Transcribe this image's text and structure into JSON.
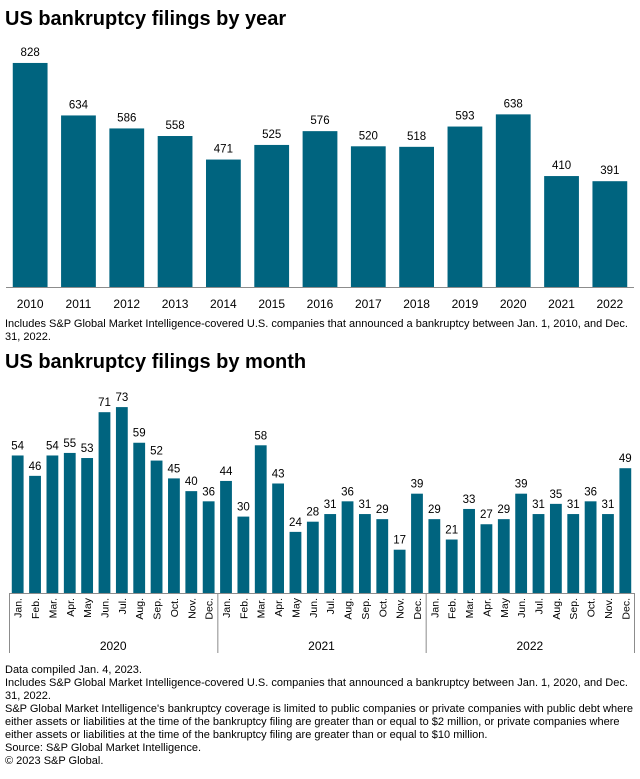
{
  "chart_data": [
    {
      "type": "bar",
      "title": "US bankruptcy filings by year",
      "categories": [
        "2010",
        "2011",
        "2012",
        "2013",
        "2014",
        "2015",
        "2016",
        "2017",
        "2018",
        "2019",
        "2020",
        "2021",
        "2022"
      ],
      "values": [
        828,
        634,
        586,
        558,
        471,
        525,
        576,
        520,
        518,
        593,
        638,
        410,
        391
      ],
      "ylim": [
        0,
        850
      ],
      "grid": false,
      "bar_color": "#00647f",
      "note": "Includes S&P Global Market Intelligence-covered U.S. companies that announced a bankruptcy between Jan. 1, 2010, and Dec. 31, 2022."
    },
    {
      "type": "bar",
      "title": "US bankruptcy filings by month",
      "groups": [
        {
          "label": "2020",
          "categories": [
            "Jan.",
            "Feb.",
            "Mar.",
            "Apr.",
            "May",
            "Jun.",
            "Jul.",
            "Aug.",
            "Sep.",
            "Oct.",
            "Nov.",
            "Dec."
          ],
          "values": [
            54,
            46,
            54,
            55,
            53,
            71,
            73,
            59,
            52,
            45,
            40,
            36
          ]
        },
        {
          "label": "2021",
          "categories": [
            "Jan.",
            "Feb.",
            "Mar.",
            "Apr.",
            "May",
            "Jun.",
            "Jul.",
            "Aug.",
            "Sep.",
            "Oct.",
            "Nov.",
            "Dec."
          ],
          "values": [
            44,
            30,
            58,
            43,
            24,
            28,
            31,
            36,
            31,
            29,
            17,
            39
          ]
        },
        {
          "label": "2022",
          "categories": [
            "Jan.",
            "Feb.",
            "Mar.",
            "Apr.",
            "May",
            "Jun.",
            "Jul.",
            "Aug.",
            "Sep.",
            "Oct.",
            "Nov.",
            "Dec."
          ],
          "values": [
            29,
            21,
            33,
            27,
            29,
            39,
            31,
            35,
            31,
            36,
            31,
            49
          ]
        }
      ],
      "ylim": [
        0,
        75
      ],
      "grid": false,
      "bar_color": "#00647f"
    }
  ],
  "footer": {
    "lines": [
      "Data compiled Jan. 4, 2023.",
      "Includes S&P Global Market Intelligence-covered U.S. companies that announced a bankruptcy between Jan. 1, 2020, and Dec. 31, 2022.",
      "S&P Global Market Intelligence's bankruptcy coverage is limited to public companies or private companies with public debt where either assets or liabilities at the time of the bankruptcy filing are greater than or equal to $2 million, or private companies where either assets or liabilities at the time of the bankruptcy filing are greater than or equal to $10 million.",
      "Source: S&P Global Market Intelligence.",
      "© 2023 S&P Global."
    ]
  }
}
